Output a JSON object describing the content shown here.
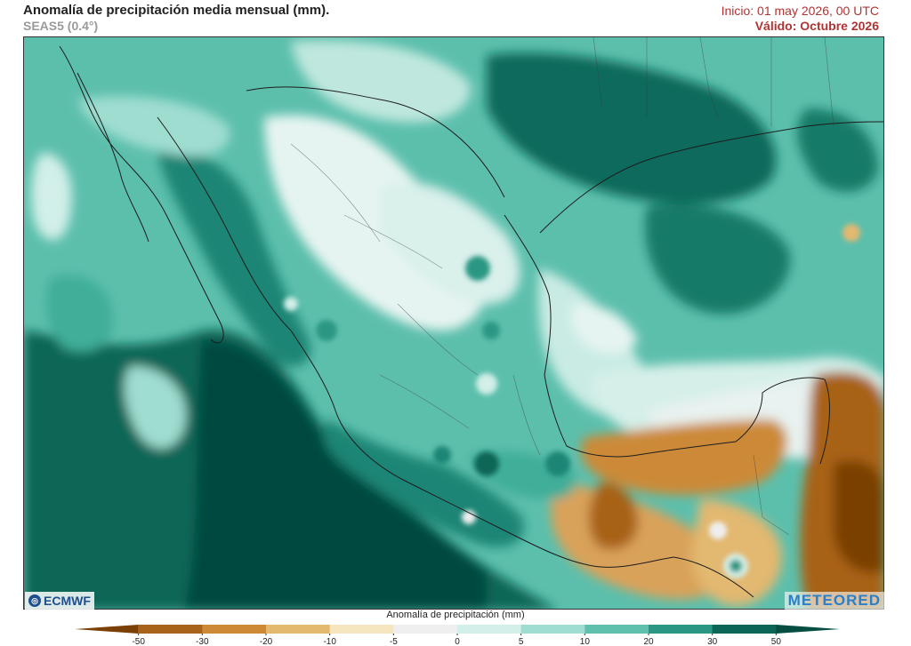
{
  "header": {
    "title": "Anomalía de precipitación media mensual (mm).",
    "subtitle": "SEAS5 (0.4°)",
    "init": "Inicio: 01 may 2026, 00 UTC",
    "valid": "Válido: Octubre 2026"
  },
  "logos": {
    "left": "ECMWF",
    "right": "METEORED"
  },
  "colorbar": {
    "title": "Anomalía de precipitación (mm)",
    "ticks": [
      "-50",
      "-30",
      "-20",
      "-10",
      "-5",
      "0",
      "5",
      "10",
      "20",
      "30",
      "50"
    ],
    "colors": [
      "#7a4005",
      "#a86219",
      "#cc8a37",
      "#e3b86f",
      "#f6e6bf",
      "#efefef",
      "#d2efe9",
      "#9fddd0",
      "#5fc1ad",
      "#2a9683",
      "#0b6657",
      "#064e42"
    ]
  },
  "colors": {
    "ocean_wet": "#0d6b5b",
    "dry_anomaly": "#a86219",
    "title_red": "#b03434"
  }
}
